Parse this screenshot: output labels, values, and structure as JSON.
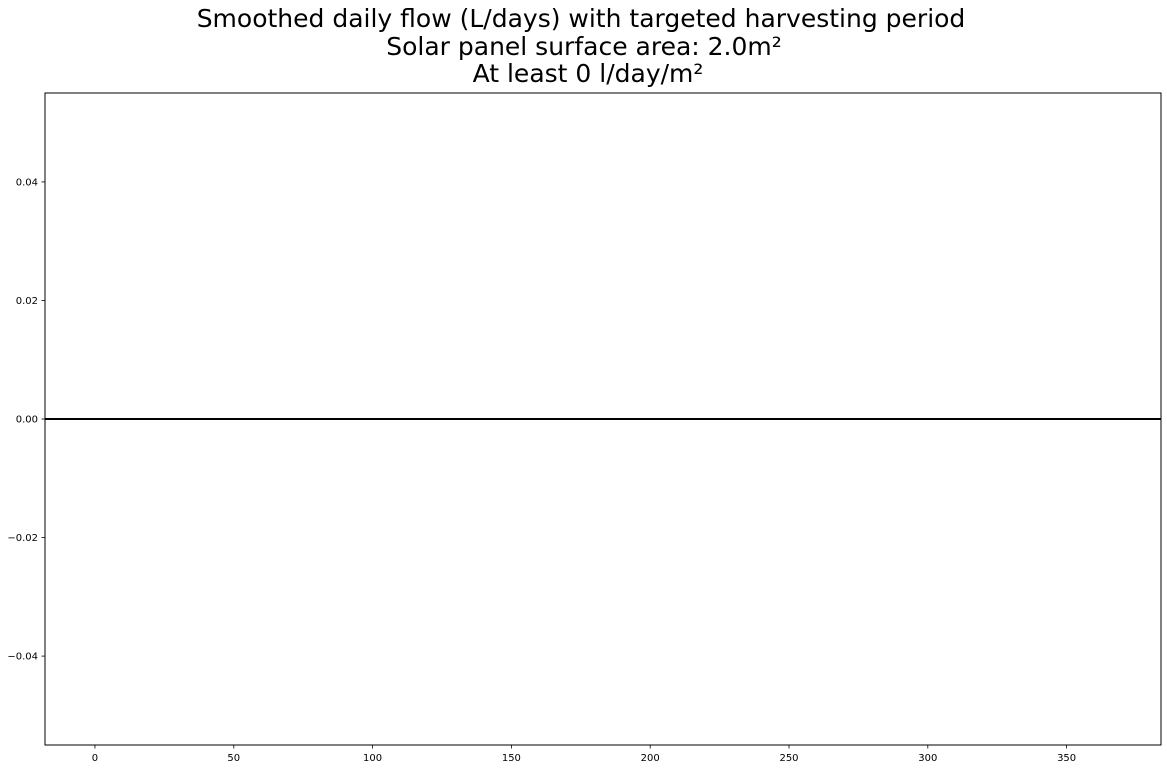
{
  "chart_data": {
    "type": "line",
    "title_lines": [
      "Smoothed daily flow (L/days) with targeted harvesting period",
      "Solar panel surface area: 2.0m²",
      "At least 0 l/day/m²"
    ],
    "xlabel": "",
    "ylabel": "",
    "xlim": [
      -18,
      384
    ],
    "ylim": [
      -0.055,
      0.055
    ],
    "x_ticks": [
      0,
      50,
      100,
      150,
      200,
      250,
      300,
      350
    ],
    "x_tick_labels": [
      "0",
      "50",
      "100",
      "150",
      "200",
      "250",
      "300",
      "350"
    ],
    "y_ticks": [
      0.04,
      0.02,
      0.0,
      -0.02,
      -0.04
    ],
    "y_tick_labels": [
      "0.04",
      "0.02",
      "0.00",
      "−0.02",
      "−0.04"
    ],
    "grid": false,
    "series": [
      {
        "color": "#000000",
        "x": [
          -18,
          384
        ],
        "y": [
          0,
          0
        ]
      }
    ]
  }
}
